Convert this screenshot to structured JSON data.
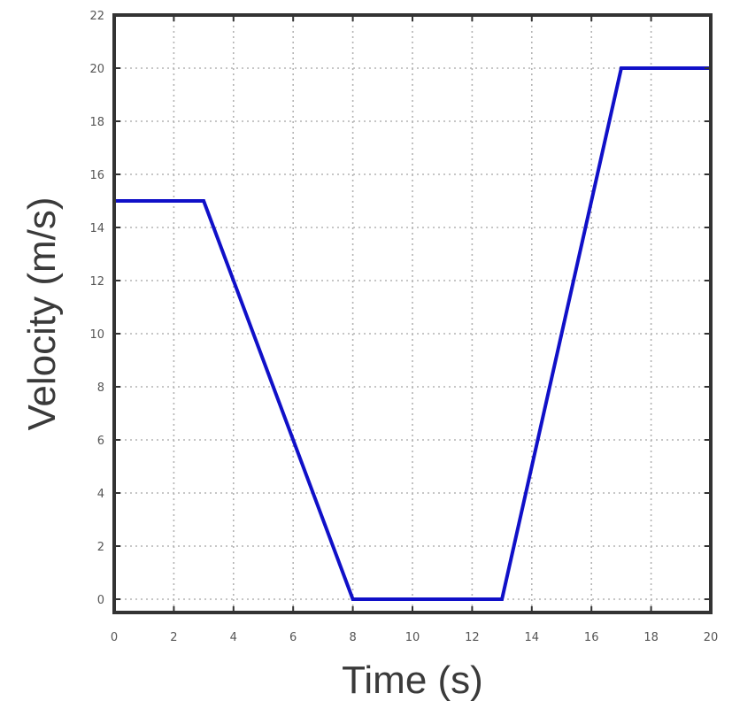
{
  "chart_data": {
    "type": "line",
    "title": "",
    "xlabel": "Time (s)",
    "ylabel": "Velocity (m/s)",
    "xlim": [
      0,
      20
    ],
    "ylim": [
      -0.5,
      22
    ],
    "xticks": [
      "0",
      "2",
      "4",
      "6",
      "8",
      "10",
      "12",
      "14",
      "16",
      "18",
      "20"
    ],
    "yticks": [
      "0",
      "2",
      "4",
      "6",
      "8",
      "10",
      "12",
      "14",
      "16",
      "18",
      "20",
      "22"
    ],
    "grid": true,
    "legend": "none",
    "series": [
      {
        "color": "#1010c8",
        "x": [
          0,
          3,
          8,
          13,
          17,
          20
        ],
        "y": [
          15,
          15,
          0,
          0,
          20,
          20
        ]
      }
    ]
  }
}
